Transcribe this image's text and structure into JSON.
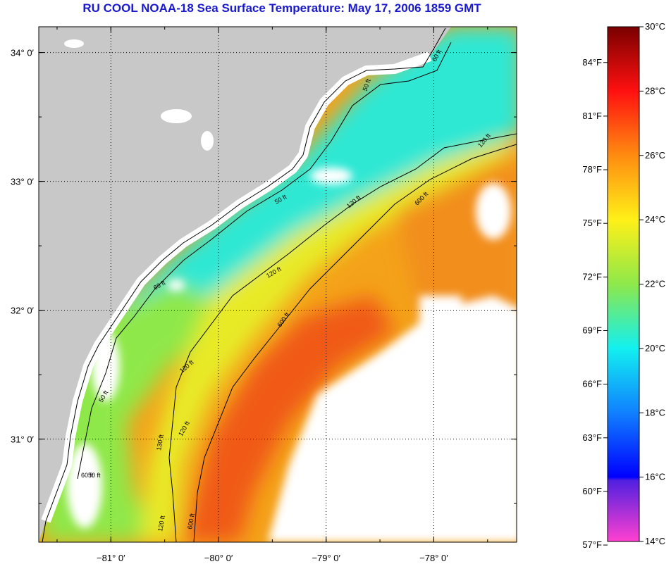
{
  "title": "RU COOL  NOAA-18  Sea Surface Temperature:  May 17, 2006 1859 GMT",
  "map": {
    "lon_range": [
      -81.67,
      -77.23
    ],
    "lat_range": [
      30.2,
      34.2
    ],
    "lon_ticks": [
      {
        "value": -81,
        "label": "−81° 0′"
      },
      {
        "value": -80,
        "label": "−80° 0′"
      },
      {
        "value": -79,
        "label": "−79° 0′"
      },
      {
        "value": -78,
        "label": "−78° 0′"
      }
    ],
    "lat_ticks": [
      {
        "value": 34,
        "label": "34° 0′"
      },
      {
        "value": 33,
        "label": "33° 0′"
      },
      {
        "value": 32,
        "label": "32° 0′"
      },
      {
        "value": 31,
        "label": "31° 0′"
      }
    ],
    "contour_labels": [
      "60 ft",
      "50 ft",
      "120 ft",
      "600 ft",
      "50 ft",
      "120 ft",
      "600 ft",
      "60 ft",
      "120 ft",
      "50 ft",
      "120 ft",
      "60 ft",
      "50 ft",
      "130 ft",
      "120 ft",
      "600 ft",
      "120 ft"
    ],
    "colors": {
      "land": "#c8c8c8",
      "cloud": "#ffffff",
      "cool_water": "#2fe8d4",
      "mid_water": "#9de840",
      "warm_water": "#f4a21a",
      "gulf_stream": "#f05a14",
      "contour": "#000000",
      "grid": "#000000"
    }
  },
  "colorbar": {
    "min_c": 14,
    "max_c": 30,
    "celsius_labels": [
      "30°C",
      "28°C",
      "26°C",
      "24°C",
      "22°C",
      "20°C",
      "18°C",
      "16°C",
      "14°C"
    ],
    "fahrenheit_labels": [
      "84°F",
      "81°F",
      "78°F",
      "75°F",
      "72°F",
      "69°F",
      "66°F",
      "63°F",
      "60°F",
      "57°F"
    ],
    "fahrenheit_values": [
      84,
      81,
      78,
      75,
      72,
      69,
      66,
      63,
      60,
      57
    ],
    "celsius_values": [
      30,
      28,
      26,
      24,
      22,
      20,
      18,
      16,
      14
    ],
    "gradient_stops": [
      {
        "c": 30,
        "color": "#7a0000"
      },
      {
        "c": 28,
        "color": "#ff1010"
      },
      {
        "c": 26,
        "color": "#ff8c10"
      },
      {
        "c": 24,
        "color": "#fff018"
      },
      {
        "c": 22,
        "color": "#8ee84a"
      },
      {
        "c": 20,
        "color": "#12f0f0"
      },
      {
        "c": 18,
        "color": "#1080ff"
      },
      {
        "c": 16,
        "color": "#0000ff"
      },
      {
        "c": 15.9,
        "color": "#5020e0"
      },
      {
        "c": 14,
        "color": "#ff40d0"
      }
    ]
  }
}
